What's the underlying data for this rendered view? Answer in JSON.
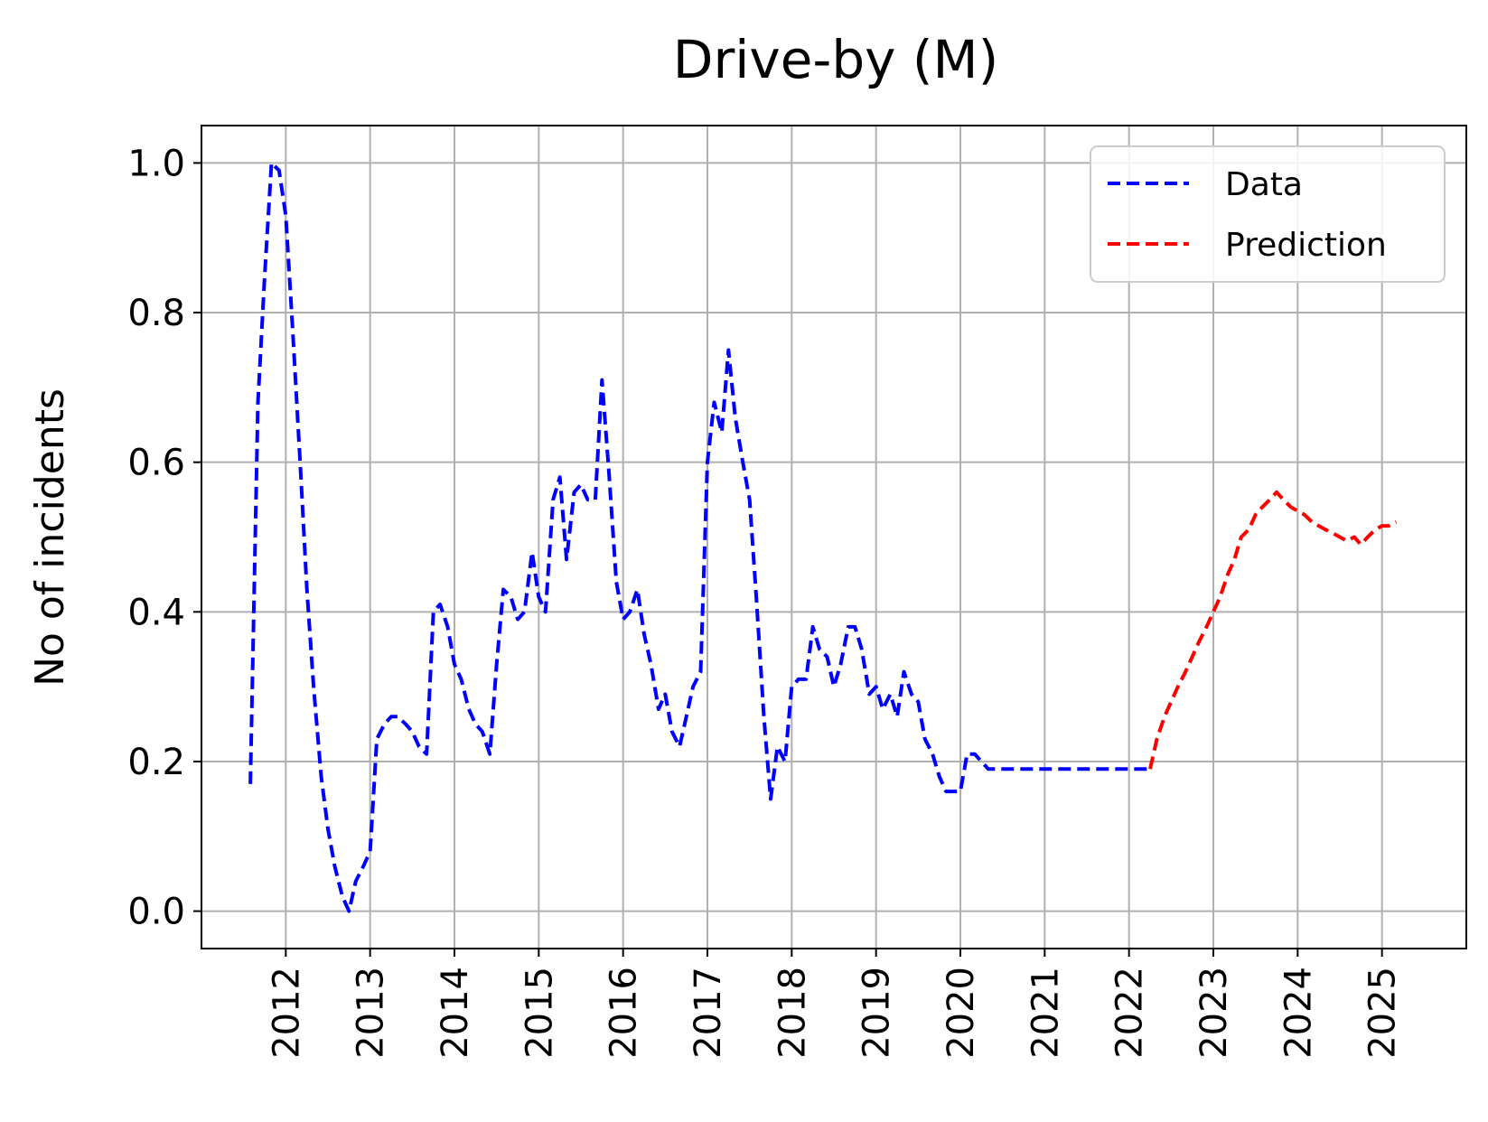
{
  "chart_data": {
    "type": "line",
    "title": "Drive-by (M)",
    "xlabel": "",
    "ylabel": "No of incidents",
    "x_ticks": [
      "2012",
      "2013",
      "2014",
      "2015",
      "2016",
      "2017",
      "2018",
      "2019",
      "2020",
      "2021",
      "2022",
      "2023",
      "2024",
      "2025"
    ],
    "y_ticks": [
      "0.0",
      "0.2",
      "0.4",
      "0.6",
      "0.8",
      "1.0"
    ],
    "xlim": [
      2011.0,
      2026.0
    ],
    "ylim": [
      -0.05,
      1.05
    ],
    "grid": true,
    "legend_position": "upper right",
    "series": [
      {
        "name": "Data",
        "color": "#0000ff",
        "line_style": "dashed",
        "x": [
          2011.58,
          2011.67,
          2011.75,
          2011.83,
          2011.92,
          2012.0,
          2012.08,
          2012.17,
          2012.25,
          2012.33,
          2012.42,
          2012.5,
          2012.58,
          2012.67,
          2012.75,
          2012.83,
          2012.92,
          2013.0,
          2013.08,
          2013.17,
          2013.25,
          2013.33,
          2013.42,
          2013.5,
          2013.58,
          2013.67,
          2013.75,
          2013.83,
          2013.92,
          2014.0,
          2014.08,
          2014.17,
          2014.25,
          2014.33,
          2014.42,
          2014.5,
          2014.58,
          2014.67,
          2014.75,
          2014.83,
          2014.92,
          2015.0,
          2015.08,
          2015.17,
          2015.25,
          2015.33,
          2015.42,
          2015.5,
          2015.58,
          2015.67,
          2015.75,
          2015.83,
          2015.92,
          2016.0,
          2016.08,
          2016.17,
          2016.25,
          2016.33,
          2016.42,
          2016.5,
          2016.58,
          2016.67,
          2016.75,
          2016.83,
          2016.92,
          2017.0,
          2017.08,
          2017.17,
          2017.25,
          2017.33,
          2017.42,
          2017.5,
          2017.58,
          2017.67,
          2017.75,
          2017.83,
          2017.92,
          2018.0,
          2018.08,
          2018.17,
          2018.25,
          2018.33,
          2018.42,
          2018.5,
          2018.58,
          2018.67,
          2018.75,
          2018.83,
          2018.92,
          2019.0,
          2019.08,
          2019.17,
          2019.25,
          2019.33,
          2019.42,
          2019.5,
          2019.58,
          2019.67,
          2019.75,
          2019.83,
          2019.92,
          2020.0,
          2020.08,
          2020.17,
          2020.25,
          2020.33,
          2020.42,
          2020.5,
          2020.58,
          2020.67,
          2020.75,
          2020.83,
          2020.92,
          2021.0,
          2021.08,
          2021.17,
          2021.25,
          2021.33,
          2021.42,
          2021.5,
          2021.58,
          2021.67,
          2021.75,
          2021.83,
          2021.92,
          2022.0,
          2022.08,
          2022.17,
          2022.25
        ],
        "y": [
          0.17,
          0.68,
          0.85,
          1.0,
          0.99,
          0.93,
          0.78,
          0.6,
          0.43,
          0.3,
          0.18,
          0.11,
          0.06,
          0.02,
          0.0,
          0.04,
          0.06,
          0.08,
          0.23,
          0.25,
          0.26,
          0.26,
          0.25,
          0.24,
          0.22,
          0.21,
          0.4,
          0.41,
          0.38,
          0.33,
          0.31,
          0.27,
          0.25,
          0.24,
          0.21,
          0.33,
          0.43,
          0.42,
          0.39,
          0.4,
          0.48,
          0.42,
          0.4,
          0.55,
          0.58,
          0.47,
          0.56,
          0.57,
          0.55,
          0.55,
          0.71,
          0.59,
          0.44,
          0.39,
          0.4,
          0.43,
          0.37,
          0.33,
          0.27,
          0.29,
          0.24,
          0.22,
          0.26,
          0.3,
          0.32,
          0.6,
          0.68,
          0.64,
          0.75,
          0.66,
          0.6,
          0.55,
          0.42,
          0.26,
          0.15,
          0.22,
          0.2,
          0.3,
          0.31,
          0.31,
          0.38,
          0.35,
          0.34,
          0.3,
          0.33,
          0.38,
          0.38,
          0.35,
          0.29,
          0.3,
          0.27,
          0.29,
          0.26,
          0.32,
          0.29,
          0.28,
          0.23,
          0.21,
          0.18,
          0.16,
          0.16,
          0.16,
          0.21,
          0.21,
          0.2,
          0.19,
          0.19,
          0.19,
          0.19,
          0.19,
          0.19,
          0.19,
          0.19,
          0.19,
          0.19,
          0.19,
          0.19,
          0.19,
          0.19,
          0.19,
          0.19,
          0.19,
          0.19,
          0.19,
          0.19,
          0.19,
          0.19,
          0.19,
          0.19
        ]
      },
      {
        "name": "Prediction",
        "color": "#ff0000",
        "line_style": "dashed",
        "x": [
          2022.25,
          2022.33,
          2022.42,
          2022.5,
          2022.58,
          2022.67,
          2022.75,
          2022.83,
          2022.92,
          2023.0,
          2023.08,
          2023.17,
          2023.25,
          2023.33,
          2023.42,
          2023.5,
          2023.58,
          2023.67,
          2023.75,
          2023.83,
          2023.92,
          2024.0,
          2024.08,
          2024.17,
          2024.25,
          2024.33,
          2024.42,
          2024.5,
          2024.58,
          2024.67,
          2024.75,
          2024.83,
          2024.92,
          2025.0,
          2025.08,
          2025.17
        ],
        "y": [
          0.19,
          0.23,
          0.26,
          0.28,
          0.3,
          0.32,
          0.34,
          0.36,
          0.38,
          0.4,
          0.42,
          0.45,
          0.47,
          0.5,
          0.51,
          0.53,
          0.54,
          0.55,
          0.56,
          0.55,
          0.54,
          0.535,
          0.53,
          0.52,
          0.515,
          0.51,
          0.505,
          0.5,
          0.495,
          0.5,
          0.49,
          0.5,
          0.51,
          0.515,
          0.515,
          0.52
        ]
      }
    ]
  }
}
